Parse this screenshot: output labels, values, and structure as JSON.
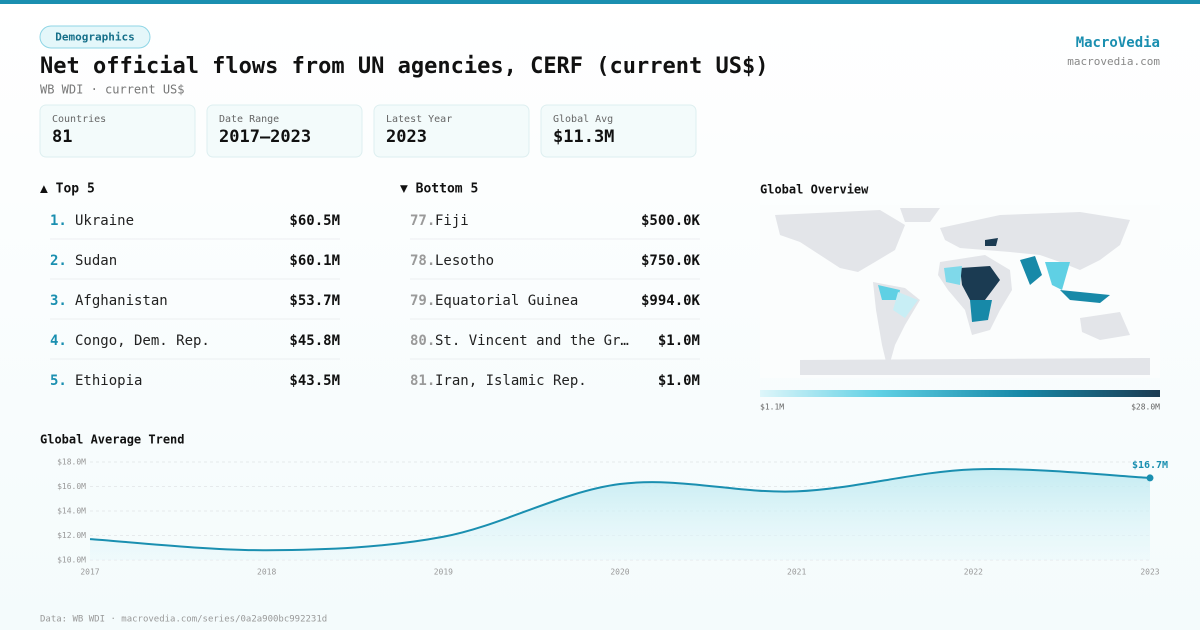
{
  "header": {
    "badge": "Demographics",
    "title": "Net official flows from UN agencies, CERF (current US$)",
    "subtitle": "WB WDI · current US$",
    "brand": "MacroVedia",
    "site": "macrovedia.com"
  },
  "stats": [
    {
      "label": "Countries",
      "value": "81"
    },
    {
      "label": "Date Range",
      "value": "2017–2023"
    },
    {
      "label": "Latest Year",
      "value": "2023"
    },
    {
      "label": "Global Avg",
      "value": "$11.3M"
    }
  ],
  "top5": {
    "heading": "▲ Top 5",
    "items": [
      {
        "rank": "1.",
        "name": "Ukraine",
        "value": "$60.5M"
      },
      {
        "rank": "2.",
        "name": "Sudan",
        "value": "$60.1M"
      },
      {
        "rank": "3.",
        "name": "Afghanistan",
        "value": "$53.7M"
      },
      {
        "rank": "4.",
        "name": "Congo, Dem. Rep.",
        "value": "$45.8M"
      },
      {
        "rank": "5.",
        "name": "Ethiopia",
        "value": "$43.5M"
      }
    ]
  },
  "bottom5": {
    "heading": "▼ Bottom 5",
    "items": [
      {
        "rank": "77.",
        "name": "Fiji",
        "value": "$500.0K"
      },
      {
        "rank": "78.",
        "name": "Lesotho",
        "value": "$750.0K"
      },
      {
        "rank": "79.",
        "name": "Equatorial Guinea",
        "value": "$994.0K"
      },
      {
        "rank": "80.",
        "name": "St. Vincent and the Gr…",
        "value": "$1.0M"
      },
      {
        "rank": "81.",
        "name": "Iran, Islamic Rep.",
        "value": "$1.0M"
      }
    ]
  },
  "map": {
    "title": "Global Overview",
    "legend_min": "$1.1M",
    "legend_max": "$28.0M"
  },
  "chart_data": {
    "type": "line",
    "title": "Global Average Trend",
    "x": [
      2017,
      2018,
      2019,
      2020,
      2021,
      2022,
      2023
    ],
    "series": [
      {
        "name": "Global average",
        "color": "#1a8fb0",
        "values": [
          11.7,
          10.8,
          11.9,
          16.2,
          15.6,
          17.4,
          16.7
        ],
        "value_labels": [
          null,
          null,
          null,
          null,
          null,
          null,
          "$16.7M"
        ]
      }
    ],
    "xlim": [
      2017,
      2023
    ],
    "xticks": [
      2017,
      2018,
      2019,
      2020,
      2021,
      2022,
      2023
    ],
    "ylim": [
      10,
      18
    ],
    "yticks": [
      {
        "value": 10,
        "label": "$10.0M"
      },
      {
        "value": 12,
        "label": "$12.0M"
      },
      {
        "value": 14,
        "label": "$14.0M"
      },
      {
        "value": 16,
        "label": "$16.0M"
      },
      {
        "value": 18,
        "label": "$18.0M"
      }
    ],
    "grid": true
  },
  "footer": "Data: WB WDI · macrovedia.com/series/0a2a900bc992231d"
}
